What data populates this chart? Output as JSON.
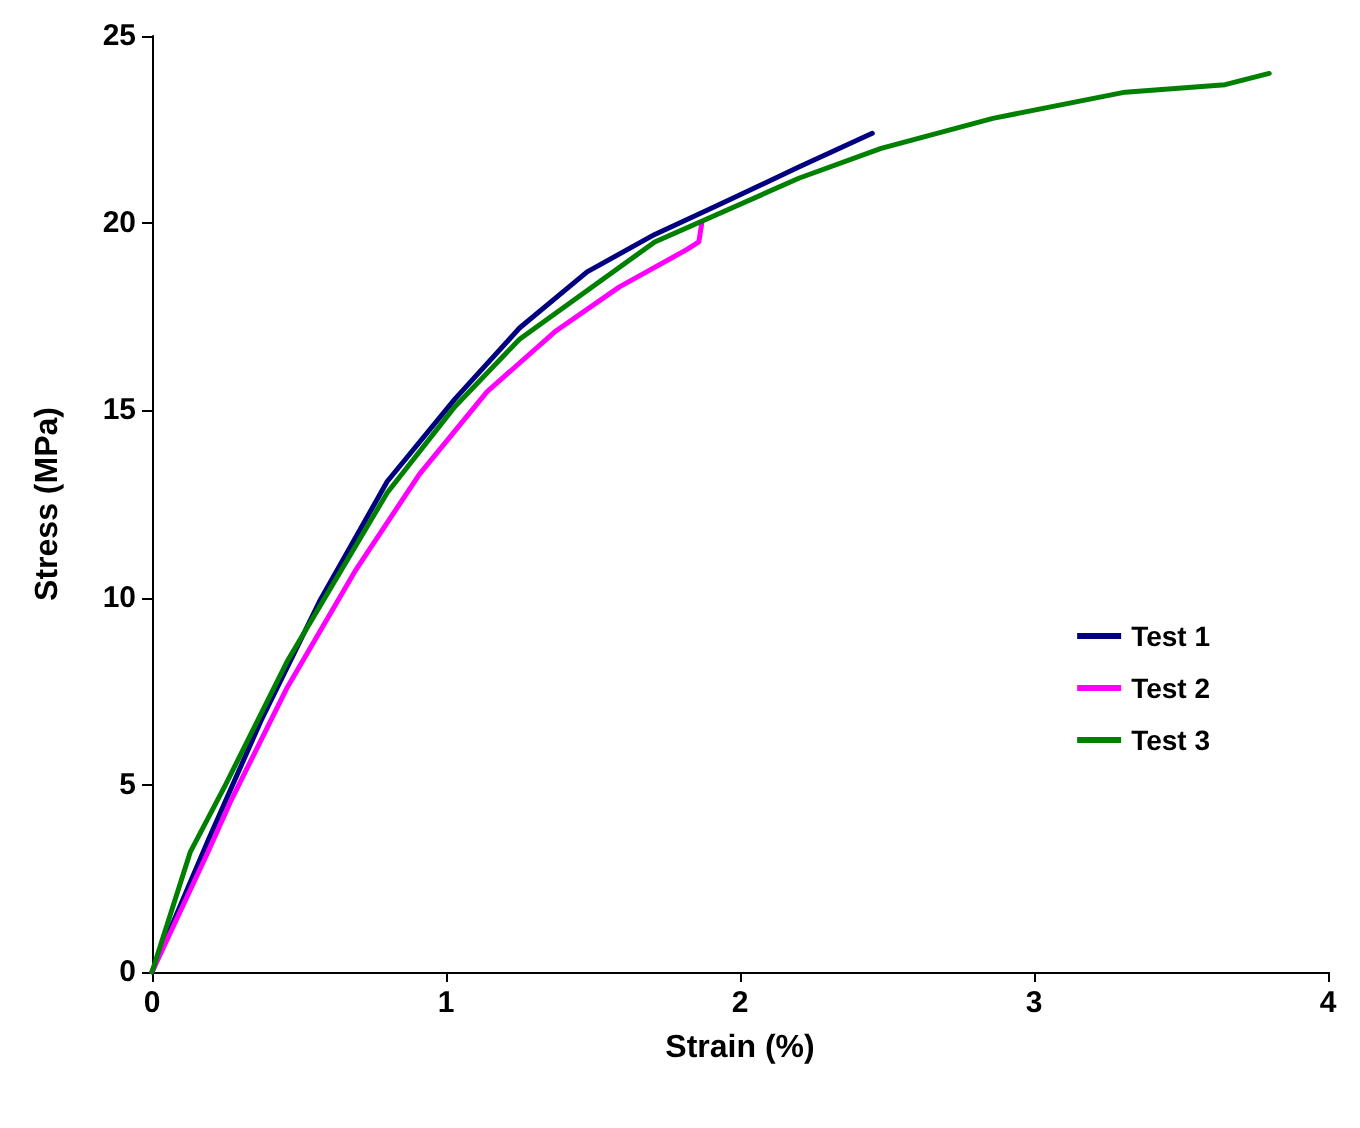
{
  "chart_data": {
    "type": "line",
    "xlabel": "Strain (%)",
    "ylabel": "Stress (MPa)",
    "xlim": [
      0,
      4
    ],
    "xticks": [
      0,
      1,
      2,
      3,
      4
    ],
    "ylim": [
      0,
      25
    ],
    "yticks": [
      0,
      5,
      10,
      15,
      20,
      25
    ],
    "grid": false,
    "legend": "right",
    "marker": "none",
    "line_style": "solid",
    "series": [
      {
        "name": "Test 1",
        "color": "#000080",
        "x": [
          0,
          0.19,
          0.37,
          0.57,
          0.8,
          1.03,
          1.25,
          1.48,
          1.71,
          1.93,
          2.2,
          2.45
        ],
        "values": [
          0,
          3.5,
          6.7,
          9.9,
          13.1,
          15.3,
          17.2,
          18.7,
          19.7,
          20.5,
          21.5,
          22.4
        ]
      },
      {
        "name": "Test 2",
        "color": "#ff00ff",
        "x": [
          0,
          0.19,
          0.27,
          0.46,
          0.69,
          0.91,
          1.14,
          1.37,
          1.59,
          1.82,
          1.86,
          1.87
        ],
        "values": [
          0,
          3.2,
          4.6,
          7.6,
          10.7,
          13.3,
          15.5,
          17.1,
          18.3,
          19.3,
          19.5,
          20
        ]
      },
      {
        "name": "Test 3",
        "color": "#008000",
        "x": [
          0,
          0.13,
          0.25,
          0.46,
          0.8,
          1.03,
          1.25,
          1.71,
          2.2,
          2.48,
          2.86,
          3.31,
          3.65,
          3.8
        ],
        "values": [
          0,
          3.2,
          5,
          8.3,
          12.8,
          15.1,
          16.9,
          19.5,
          21.2,
          22,
          22.8,
          23.5,
          23.7,
          24
        ]
      }
    ]
  }
}
